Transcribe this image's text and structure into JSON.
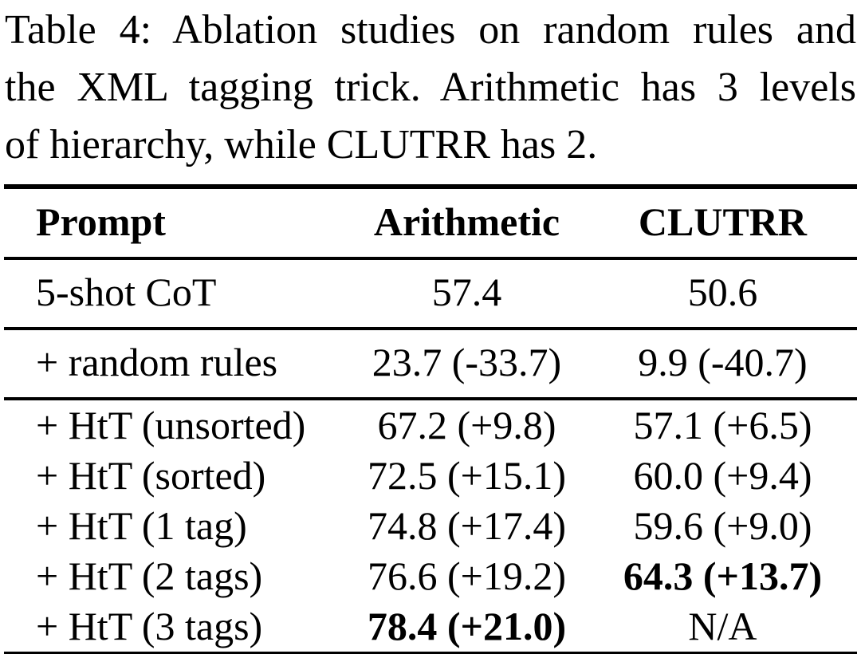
{
  "caption": {
    "lines": [
      "Table 4: Ablation studies on random rules and",
      "the XML tagging trick. Arithmetic has 3 levels",
      "of hierarchy, while CLUTRR has 2."
    ]
  },
  "table": {
    "columns": [
      "Prompt",
      "Arithmetic",
      "CLUTRR"
    ],
    "groups": [
      {
        "rows": [
          {
            "cells": [
              "5-shot CoT",
              "57.4",
              "50.6"
            ],
            "bold": [
              false,
              false,
              false
            ]
          }
        ]
      },
      {
        "rows": [
          {
            "cells": [
              "+ random rules",
              "23.7 (-33.7)",
              "9.9 (-40.7)"
            ],
            "bold": [
              false,
              false,
              false
            ]
          }
        ]
      },
      {
        "rows": [
          {
            "cells": [
              "+ HtT (unsorted)",
              "67.2 (+9.8)",
              "57.1 (+6.5)"
            ],
            "bold": [
              false,
              false,
              false
            ]
          },
          {
            "cells": [
              "+ HtT (sorted)",
              "72.5 (+15.1)",
              "60.0 (+9.4)"
            ],
            "bold": [
              false,
              false,
              false
            ]
          },
          {
            "cells": [
              "+ HtT (1 tag)",
              "74.8 (+17.4)",
              "59.6 (+9.0)"
            ],
            "bold": [
              false,
              false,
              false
            ]
          },
          {
            "cells": [
              "+ HtT (2 tags)",
              "76.6 (+19.2)",
              "64.3 (+13.7)"
            ],
            "bold": [
              false,
              false,
              true
            ]
          },
          {
            "cells": [
              "+ HtT (3 tags)",
              "78.4 (+21.0)",
              "N/A"
            ],
            "bold": [
              false,
              true,
              false
            ]
          }
        ]
      }
    ]
  }
}
